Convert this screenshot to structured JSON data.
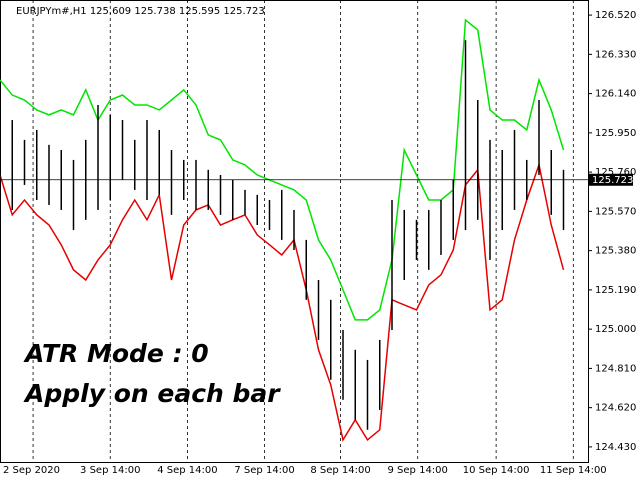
{
  "chart_data": {
    "type": "band-bars",
    "header": "EURJPYm#,H1  125.609 125.738 125.595 125.723",
    "annotations": [
      "ATR Mode : 0",
      "Apply on each bar"
    ],
    "last_price": 125.723,
    "xlim": [
      0,
      48
    ],
    "xticks": [
      {
        "value": 2.7,
        "label": "2 Sep 2020"
      },
      {
        "value": 9,
        "label": "3 Sep 14:00"
      },
      {
        "value": 15.3,
        "label": "4 Sep 14:00"
      },
      {
        "value": 21.6,
        "label": "7 Sep 14:00"
      },
      {
        "value": 27.8,
        "label": "8 Sep 14:00"
      },
      {
        "value": 34.1,
        "label": "9 Sep 14:00"
      },
      {
        "value": 40.5,
        "label": "10 Sep 14:00"
      },
      {
        "value": 46.8,
        "label": "11 Sep 14:00"
      }
    ],
    "ylim": [
      124.357,
      126.593
    ],
    "yticks": [
      {
        "value": 126.52,
        "label": "126.520"
      },
      {
        "value": 126.33,
        "label": "126.330"
      },
      {
        "value": 126.14,
        "label": "126.140"
      },
      {
        "value": 125.95,
        "label": "125.950"
      },
      {
        "value": 125.76,
        "label": "125.760"
      },
      {
        "value": 125.57,
        "label": "125.570"
      },
      {
        "value": 125.38,
        "label": "125.380"
      },
      {
        "value": 125.19,
        "label": "125.190"
      },
      {
        "value": 125.0,
        "label": "125.000"
      },
      {
        "value": 124.81,
        "label": "124.810"
      },
      {
        "value": 124.62,
        "label": "124.620"
      },
      {
        "value": 124.43,
        "label": "124.430"
      }
    ],
    "upper": {
      "color": "#00e600",
      "values": [
        126.206,
        126.133,
        126.109,
        126.061,
        126.037,
        126.061,
        126.037,
        126.158,
        126.012,
        126.109,
        126.133,
        126.085,
        126.085,
        126.061,
        126.109,
        126.158,
        126.085,
        125.94,
        125.916,
        125.819,
        125.795,
        125.746,
        125.722,
        125.698,
        125.674,
        125.625,
        125.432,
        125.335,
        125.19,
        125.045,
        125.045,
        125.093,
        125.335,
        125.867,
        125.746,
        125.625,
        125.625,
        125.674,
        126.496,
        126.448,
        126.061,
        126.012,
        126.012,
        125.964,
        126.206,
        126.061,
        125.867
      ]
    },
    "lower": {
      "color": "#e60000",
      "values": [
        125.746,
        125.553,
        125.625,
        125.553,
        125.504,
        125.408,
        125.287,
        125.238,
        125.335,
        125.408,
        125.529,
        125.625,
        125.529,
        125.65,
        125.238,
        125.504,
        125.577,
        125.601,
        125.504,
        125.529,
        125.553,
        125.456,
        125.408,
        125.359,
        125.432,
        125.19,
        124.9,
        124.73,
        124.464,
        124.561,
        124.464,
        124.513,
        125.142,
        125.117,
        125.093,
        125.214,
        125.263,
        125.383,
        125.698,
        125.771,
        125.093,
        125.142,
        125.432,
        125.625,
        125.795,
        125.504,
        125.287
      ]
    },
    "bars": {
      "color": "#000000",
      "high": [
        126.061,
        126.012,
        125.916,
        125.964,
        125.892,
        125.867,
        125.819,
        125.916,
        126.085,
        126.037,
        126.012,
        125.916,
        126.012,
        125.964,
        125.867,
        125.819,
        125.819,
        125.771,
        125.746,
        125.722,
        125.674,
        125.65,
        125.625,
        125.674,
        125.577,
        125.432,
        125.238,
        125.142,
        124.996,
        124.9,
        124.851,
        124.948,
        125.625,
        125.577,
        125.529,
        125.577,
        125.625,
        125.722,
        126.399,
        126.109,
        125.916,
        125.867,
        125.964,
        125.819,
        126.109,
        125.867,
        125.771
      ],
      "low": [
        125.674,
        125.577,
        125.698,
        125.625,
        125.601,
        125.577,
        125.48,
        125.529,
        125.577,
        125.625,
        125.722,
        125.674,
        125.625,
        125.65,
        125.553,
        125.625,
        125.577,
        125.577,
        125.553,
        125.529,
        125.553,
        125.504,
        125.48,
        125.432,
        125.383,
        125.142,
        124.948,
        124.755,
        124.658,
        124.561,
        124.513,
        124.609,
        124.996,
        125.238,
        125.335,
        125.287,
        125.359,
        125.432,
        125.48,
        125.529,
        125.335,
        125.48,
        125.577,
        125.625,
        125.746,
        125.553,
        125.48
      ]
    }
  }
}
